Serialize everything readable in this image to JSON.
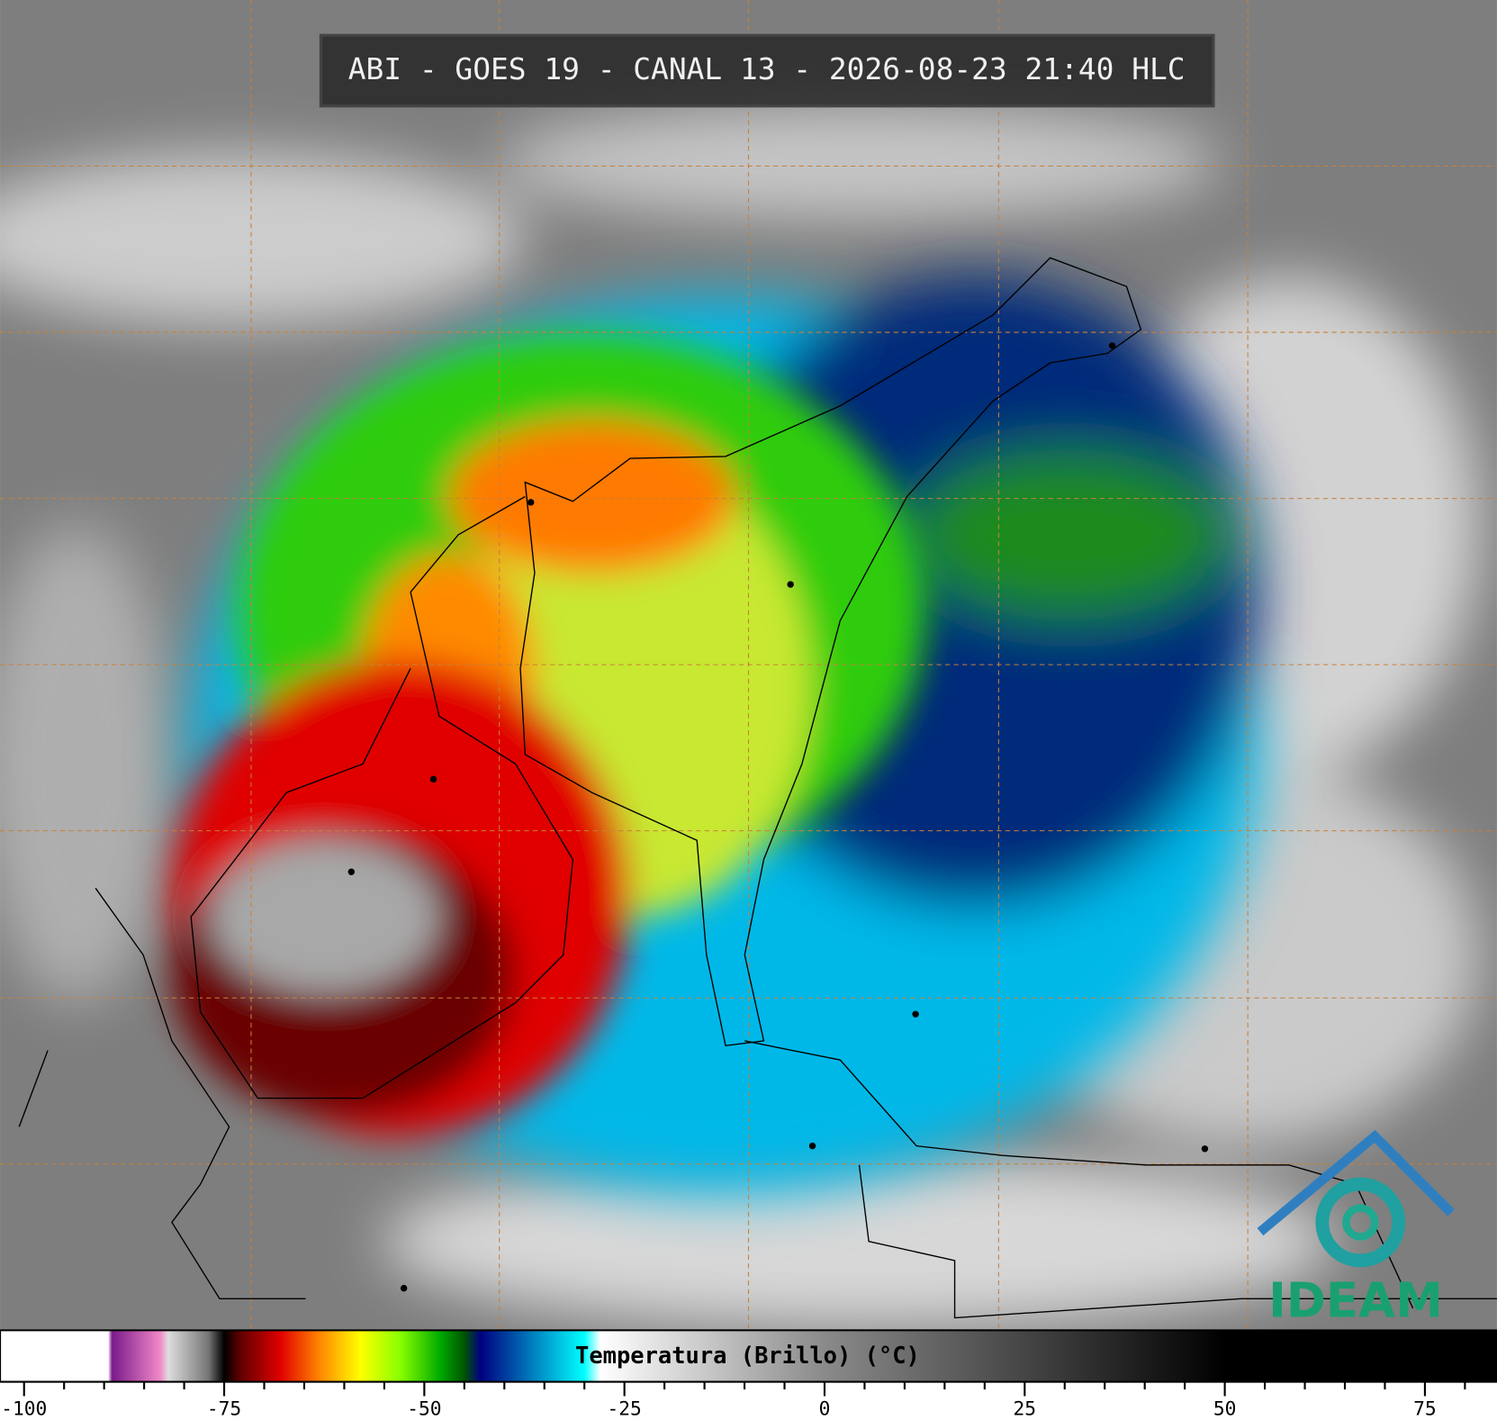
{
  "title": "ABI - GOES 19 - CANAL 13 - 2026-08-23 21:40 HLC",
  "colorbar": {
    "label": "Temperatura (Brillo) (°C)",
    "lim": [
      -103,
      84
    ],
    "ticks": [
      -100,
      -75,
      -50,
      -25,
      0,
      25,
      50,
      75
    ],
    "minor_ticks": [
      -95,
      -90,
      -85,
      -80,
      -70,
      -65,
      -60,
      -55,
      -45,
      -40,
      -35,
      -30,
      -20,
      -15,
      -10,
      -5,
      5,
      10,
      15,
      20,
      30,
      35,
      40,
      45,
      55,
      60,
      65,
      70,
      80
    ],
    "stops": [
      {
        "value": -103,
        "color": "#ffffff"
      },
      {
        "value": -89.5,
        "color": "#ffffff"
      },
      {
        "value": -89,
        "color": "#7a1a8a"
      },
      {
        "value": -83,
        "color": "#f088c8"
      },
      {
        "value": -82,
        "color": "#dddddd"
      },
      {
        "value": -77,
        "color": "#777777"
      },
      {
        "value": -75,
        "color": "#000000"
      },
      {
        "value": -73,
        "color": "#600000"
      },
      {
        "value": -68,
        "color": "#e00000"
      },
      {
        "value": -63,
        "color": "#ff8800"
      },
      {
        "value": -58,
        "color": "#ffff00"
      },
      {
        "value": -53,
        "color": "#88ff00"
      },
      {
        "value": -48,
        "color": "#00aa00"
      },
      {
        "value": -45,
        "color": "#005500"
      },
      {
        "value": -43,
        "color": "#000080"
      },
      {
        "value": -38,
        "color": "#0060b0"
      },
      {
        "value": -30,
        "color": "#00ffff"
      },
      {
        "value": -28,
        "color": "#ffffff"
      },
      {
        "value": 0,
        "color": "#8a8a8a"
      },
      {
        "value": 50,
        "color": "#000000"
      },
      {
        "value": 84,
        "color": "#000000"
      }
    ]
  },
  "logo": "IDEAM"
}
